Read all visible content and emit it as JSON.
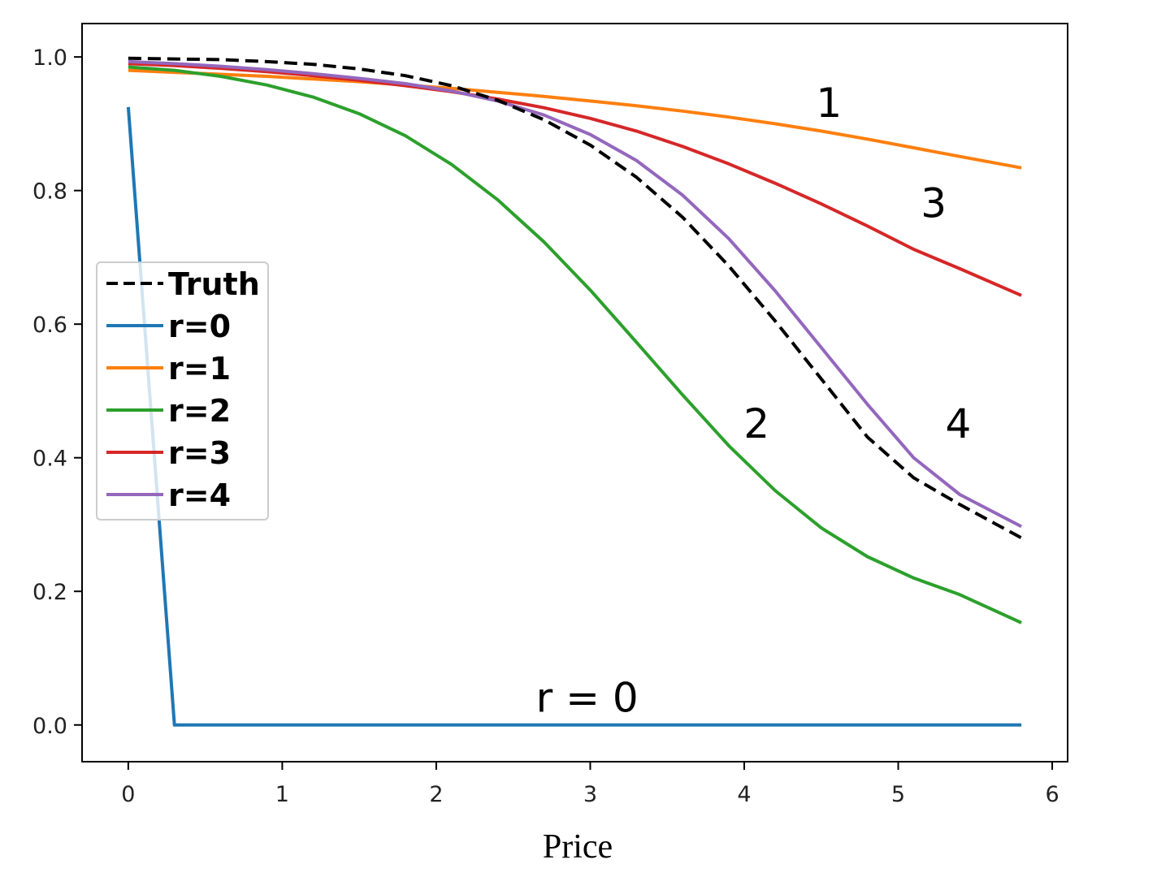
{
  "chart_data": {
    "type": "line",
    "title": "",
    "xlabel": "Price",
    "ylabel": "",
    "xlim": [
      -0.3,
      6.1
    ],
    "ylim": [
      -0.055,
      1.05
    ],
    "xticks": [
      0,
      1,
      2,
      3,
      4,
      5,
      6
    ],
    "xtick_labels": [
      "0",
      "1",
      "2",
      "3",
      "4",
      "5",
      "6"
    ],
    "yticks": [
      0.0,
      0.2,
      0.4,
      0.6,
      0.8,
      1.0
    ],
    "ytick_labels": [
      "0.0",
      "0.2",
      "0.4",
      "0.6",
      "0.8",
      "1.0"
    ],
    "grid": false,
    "legend_position": "center-left",
    "series": [
      {
        "name": "Truth",
        "color": "#000000",
        "dash": true,
        "x": [
          0.0,
          0.3,
          0.6,
          0.9,
          1.2,
          1.5,
          1.8,
          2.1,
          2.4,
          2.7,
          3.0,
          3.3,
          3.6,
          3.9,
          4.2,
          4.5,
          4.8,
          5.1,
          5.4,
          5.8
        ],
        "y": [
          0.998,
          0.997,
          0.996,
          0.993,
          0.989,
          0.982,
          0.972,
          0.957,
          0.935,
          0.906,
          0.868,
          0.82,
          0.76,
          0.687,
          0.605,
          0.518,
          0.431,
          0.37,
          0.33,
          0.28
        ]
      },
      {
        "name": "r=0",
        "color": "#1f77b4",
        "dash": false,
        "x": [
          0.0,
          0.3,
          0.6,
          0.9,
          1.2,
          1.5,
          1.8,
          2.1,
          2.4,
          2.7,
          3.0,
          3.3,
          3.6,
          3.9,
          4.2,
          4.5,
          4.8,
          5.1,
          5.4,
          5.8
        ],
        "y": [
          0.925,
          0.0,
          0.0,
          0.0,
          0.0,
          0.0,
          0.0,
          0.0,
          0.0,
          0.0,
          0.0,
          0.0,
          0.0,
          0.0,
          0.0,
          0.0,
          0.0,
          0.0,
          0.0,
          0.0
        ]
      },
      {
        "name": "r=1",
        "color": "#ff7f0e",
        "dash": false,
        "x": [
          0.0,
          0.3,
          0.6,
          0.9,
          1.2,
          1.5,
          1.8,
          2.1,
          2.4,
          2.7,
          3.0,
          3.3,
          3.6,
          3.9,
          4.2,
          4.5,
          4.8,
          5.1,
          5.4,
          5.8
        ],
        "y": [
          0.98,
          0.977,
          0.974,
          0.971,
          0.967,
          0.963,
          0.958,
          0.953,
          0.947,
          0.941,
          0.934,
          0.927,
          0.919,
          0.91,
          0.9,
          0.889,
          0.877,
          0.864,
          0.851,
          0.834
        ]
      },
      {
        "name": "r=2",
        "color": "#2ca02c",
        "dash": false,
        "x": [
          0.0,
          0.3,
          0.6,
          0.9,
          1.2,
          1.5,
          1.8,
          2.1,
          2.4,
          2.7,
          3.0,
          3.3,
          3.6,
          3.9,
          4.2,
          4.5,
          4.8,
          5.1,
          5.4,
          5.8
        ],
        "y": [
          0.985,
          0.98,
          0.971,
          0.958,
          0.94,
          0.915,
          0.882,
          0.839,
          0.786,
          0.723,
          0.651,
          0.573,
          0.494,
          0.418,
          0.351,
          0.295,
          0.252,
          0.22,
          0.195,
          0.153
        ]
      },
      {
        "name": "r=3",
        "color": "#d62728",
        "dash": false,
        "x": [
          0.0,
          0.3,
          0.6,
          0.9,
          1.2,
          1.5,
          1.8,
          2.1,
          2.4,
          2.7,
          3.0,
          3.3,
          3.6,
          3.9,
          4.2,
          4.5,
          4.8,
          5.1,
          5.4,
          5.8
        ],
        "y": [
          0.99,
          0.987,
          0.983,
          0.978,
          0.972,
          0.965,
          0.957,
          0.948,
          0.937,
          0.924,
          0.908,
          0.889,
          0.866,
          0.84,
          0.811,
          0.78,
          0.747,
          0.712,
          0.683,
          0.643
        ]
      },
      {
        "name": "r=4",
        "color": "#9467bd",
        "dash": false,
        "x": [
          0.0,
          0.3,
          0.6,
          0.9,
          1.2,
          1.5,
          1.8,
          2.1,
          2.4,
          2.7,
          3.0,
          3.3,
          3.6,
          3.9,
          4.2,
          4.5,
          4.8,
          5.1,
          5.4,
          5.8
        ],
        "y": [
          0.993,
          0.99,
          0.986,
          0.981,
          0.975,
          0.968,
          0.96,
          0.949,
          0.934,
          0.913,
          0.884,
          0.845,
          0.793,
          0.728,
          0.65,
          0.565,
          0.48,
          0.4,
          0.345,
          0.297
        ]
      }
    ],
    "annotations": [
      {
        "text": "1",
        "x": 4.55,
        "y": 0.91
      },
      {
        "text": "3",
        "x": 5.23,
        "y": 0.76
      },
      {
        "text": "2",
        "x": 4.08,
        "y": 0.43
      },
      {
        "text": "4",
        "x": 5.39,
        "y": 0.43
      },
      {
        "text": "r = 0",
        "x": 2.98,
        "y": 0.02
      }
    ]
  }
}
